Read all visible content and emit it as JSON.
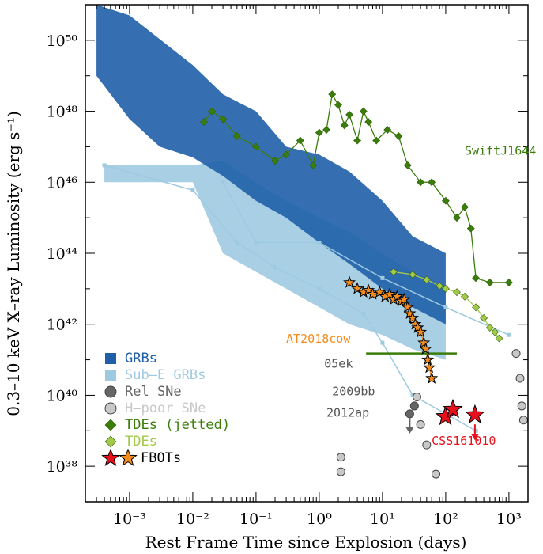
{
  "chart_data": {
    "type": "scatter",
    "title": "",
    "xlabel": "Rest Frame Time since Explosion (days)",
    "ylabel": "0.3–10 keV X–ray Luminosity (erg s⁻¹)",
    "xscale": "log",
    "yscale": "log",
    "xlim": [
      0.0002,
      2000
    ],
    "ylim": [
      1e+37,
      1e+51
    ],
    "grid": false,
    "legend_position": "bottom-left",
    "x_ticks": [
      {
        "value": 0.001,
        "label": "10⁻³"
      },
      {
        "value": 0.01,
        "label": "10⁻²"
      },
      {
        "value": 0.1,
        "label": "10⁻¹"
      },
      {
        "value": 1,
        "label": "10⁰"
      },
      {
        "value": 10,
        "label": "10¹"
      },
      {
        "value": 100,
        "label": "10²"
      },
      {
        "value": 1000,
        "label": "10³"
      }
    ],
    "y_ticks": [
      {
        "value": 1e+38,
        "label": "10³⁸"
      },
      {
        "value": 1e+40,
        "label": "10⁴⁰"
      },
      {
        "value": 1e+42,
        "label": "10⁴²"
      },
      {
        "value": 1e+44,
        "label": "10⁴⁴"
      },
      {
        "value": 1e+46,
        "label": "10⁴⁶"
      },
      {
        "value": 1e+48,
        "label": "10⁴⁸"
      },
      {
        "value": 1e+50,
        "label": "10⁵⁰"
      }
    ],
    "legend": [
      {
        "label": "GRBs",
        "color": "#1f5fa8",
        "marker": "square"
      },
      {
        "label": "Sub–E GRBs",
        "color": "#9ecae1",
        "marker": "square"
      },
      {
        "label": "Rel SNe",
        "color": "#666666",
        "marker": "circle"
      },
      {
        "label": "H–poor SNe",
        "color": "#c8c8c8",
        "marker": "circle"
      },
      {
        "label": "TDEs (jetted)",
        "color": "#3a7d0a",
        "marker": "diamond"
      },
      {
        "label": "TDEs",
        "color": "#a3c94a",
        "marker": "diamond"
      },
      {
        "label": "FBOTs",
        "color": "#e8101a",
        "color2": "#f28c1e",
        "marker": "star"
      }
    ],
    "annotations": [
      {
        "text": "SwiftJ1644",
        "x": 200,
        "y": 6e+46,
        "color": "#3a7d0a"
      },
      {
        "text": "AT2018cow",
        "x": 0.3,
        "y": 3e+41,
        "color": "#f28c1e"
      },
      {
        "text": "05ek",
        "x": 1.2,
        "y": 6e+40,
        "color": "#555555"
      },
      {
        "text": "2009bb",
        "x": 1.6,
        "y": 1e+40,
        "color": "#555555"
      },
      {
        "text": "2012ap",
        "x": 1.3,
        "y": 2.5e+39,
        "color": "#555555"
      },
      {
        "text": "CSS161010",
        "x": 60,
        "y": 4e+38,
        "color": "#e8101a"
      }
    ],
    "series": [
      {
        "name": "CSS161010",
        "marker": "star",
        "color": "#e8101a",
        "points": [
          [
            99,
            2.5e+39
          ],
          [
            130,
            4e+39
          ],
          [
            290,
            2.8e+39
          ]
        ],
        "upper_limits": [
          [
            290,
            2.8e+39
          ]
        ]
      },
      {
        "name": "AT2018cow",
        "marker": "star",
        "color": "#f28c1e",
        "points": [
          [
            3,
            1.5e+43
          ],
          [
            4,
            1e+43
          ],
          [
            5,
            8e+42
          ],
          [
            6,
            9e+42
          ],
          [
            7,
            7e+42
          ],
          [
            9,
            8e+42
          ],
          [
            11,
            6e+42
          ],
          [
            13,
            7e+42
          ],
          [
            15,
            5e+42
          ],
          [
            17,
            6e+42
          ],
          [
            20,
            4.5e+42
          ],
          [
            22,
            5e+42
          ],
          [
            25,
            3e+42
          ],
          [
            27,
            2e+42
          ],
          [
            30,
            1.5e+42
          ],
          [
            33,
            1e+42
          ],
          [
            36,
            8e+41
          ],
          [
            40,
            6e+41
          ],
          [
            45,
            3e+41
          ],
          [
            48,
            2e+41
          ],
          [
            52,
            1e+41
          ],
          [
            55,
            6e+40
          ],
          [
            60,
            3e+40
          ]
        ],
        "reference_line": {
          "x": [
            5.5,
            150
          ],
          "y": 1.5e+41
        }
      },
      {
        "name": "SwiftJ1644",
        "marker": "diamond",
        "color": "#3a7d0a",
        "points": [
          [
            0.015,
            5e+47
          ],
          [
            0.02,
            1e+48
          ],
          [
            0.03,
            6e+47
          ],
          [
            0.05,
            2e+47
          ],
          [
            0.1,
            1e+47
          ],
          [
            0.2,
            4e+46
          ],
          [
            0.3,
            6e+46
          ],
          [
            0.5,
            1.5e+47
          ],
          [
            0.8,
            3e+46
          ],
          [
            1,
            2.5e+47
          ],
          [
            1.3,
            3e+47
          ],
          [
            1.6,
            3e+48
          ],
          [
            2,
            1.5e+48
          ],
          [
            2.5,
            4e+47
          ],
          [
            3,
            8e+47
          ],
          [
            4,
            1.5e+47
          ],
          [
            5,
            1e+48
          ],
          [
            6,
            5e+47
          ],
          [
            8,
            1.5e+47
          ],
          [
            12,
            3e+47
          ],
          [
            18,
            2e+47
          ],
          [
            25,
            3e+46
          ],
          [
            40,
            1e+46
          ],
          [
            60,
            1e+46
          ],
          [
            100,
            3e+45
          ],
          [
            150,
            1e+45
          ],
          [
            200,
            2e+45
          ],
          [
            250,
            5e+44
          ],
          [
            300,
            2e+43
          ],
          [
            500,
            1.5e+43
          ],
          [
            1000,
            1.5e+43
          ]
        ]
      },
      {
        "name": "TDEs",
        "marker": "diamond",
        "color": "#a3c94a",
        "points": [
          [
            15,
            3e+43
          ],
          [
            30,
            2.5e+43
          ],
          [
            50,
            1.8e+43
          ],
          [
            80,
            1.2e+43
          ],
          [
            100,
            1e+43
          ],
          [
            150,
            8e+42
          ],
          [
            200,
            6e+42
          ],
          [
            300,
            3e+42
          ],
          [
            400,
            1.5e+42
          ],
          [
            500,
            8e+41
          ],
          [
            600,
            6e+41
          ],
          [
            700,
            4e+41
          ]
        ]
      },
      {
        "name": "Rel SNe",
        "marker": "circle",
        "color": "#666666",
        "points": [
          [
            27,
            3e+39
          ],
          [
            32,
            5e+39
          ]
        ],
        "upper_limits": [
          [
            27,
            3e+39
          ]
        ]
      },
      {
        "name": "H–poor SNe",
        "marker": "circle",
        "color": "#c8c8c8",
        "points": [
          [
            2.2,
            1.8e+38
          ],
          [
            2.2,
            7e+37
          ],
          [
            35,
            9e+39
          ],
          [
            40,
            1.5e+39
          ],
          [
            50,
            4e+38
          ],
          [
            70,
            6e+37
          ],
          [
            1300,
            1.5e+41
          ],
          [
            1500,
            3e+40
          ],
          [
            1600,
            5e+39
          ],
          [
            1700,
            2e+39
          ]
        ]
      },
      {
        "name": "GRBs",
        "marker": "square",
        "color": "#1f5fa8",
        "envelope_upper": [
          [
            0.0003,
            1e+51
          ],
          [
            0.001,
            5e+50
          ],
          [
            0.01,
            2e+49
          ],
          [
            0.03,
            3e+48
          ],
          [
            0.1,
            1e+48
          ],
          [
            0.3,
            1e+47
          ],
          [
            1,
            6e+46
          ],
          [
            3,
            2e+46
          ],
          [
            10,
            3e+45
          ],
          [
            30,
            3e+44
          ],
          [
            100,
            1e+44
          ]
        ],
        "envelope_lower": [
          [
            0.0003,
            1e+49
          ],
          [
            0.001,
            6e+47
          ],
          [
            0.003,
            1e+47
          ],
          [
            0.01,
            5e+46
          ],
          [
            0.03,
            1.5e+46
          ],
          [
            0.1,
            3e+45
          ],
          [
            0.3,
            1e+45
          ],
          [
            1,
            2e+44
          ],
          [
            3,
            5e+43
          ],
          [
            10,
            1e+43
          ],
          [
            30,
            3e+42
          ],
          [
            100,
            1e+42
          ]
        ]
      },
      {
        "name": "Sub–E GRBs",
        "marker": "square",
        "color": "#9ecae1",
        "envelope_upper": [
          [
            0.0004,
            3e+46
          ],
          [
            0.01,
            3e+46
          ],
          [
            0.03,
            4e+46
          ],
          [
            0.1,
            1e+46
          ],
          [
            0.3,
            3e+45
          ],
          [
            1,
            1e+45
          ],
          [
            3,
            4e+44
          ],
          [
            10,
            1e+44
          ],
          [
            30,
            3e+43
          ],
          [
            100,
            1e+43
          ]
        ],
        "envelope_lower": [
          [
            0.0004,
            1e+46
          ],
          [
            0.01,
            1e+46
          ],
          [
            0.03,
            1e+44
          ],
          [
            0.1,
            3e+43
          ],
          [
            0.3,
            1e+43
          ],
          [
            1,
            3e+42
          ],
          [
            3,
            1e+42
          ],
          [
            10,
            5e+41
          ],
          [
            30,
            2e+41
          ],
          [
            100,
            1e+41
          ]
        ],
        "tracks": [
          [
            [
              0.0004,
              3e+46
            ],
            [
              0.01,
              6e+45
            ],
            [
              0.05,
              2e+44
            ],
            [
              0.2,
              4e+43
            ],
            [
              1,
              1e+43
            ],
            [
              5,
              2e+42
            ],
            [
              10,
              3e+41
            ],
            [
              30,
              1e+40
            ],
            [
              100,
              3e+39
            ],
            [
              300,
              1e+39
            ]
          ],
          [
            [
              0.03,
              1e+46
            ],
            [
              0.1,
              2e+44
            ],
            [
              1,
              2e+44
            ],
            [
              10,
              2e+43
            ],
            [
              100,
              3e+42
            ],
            [
              1000,
              5e+41
            ]
          ]
        ]
      }
    ]
  }
}
